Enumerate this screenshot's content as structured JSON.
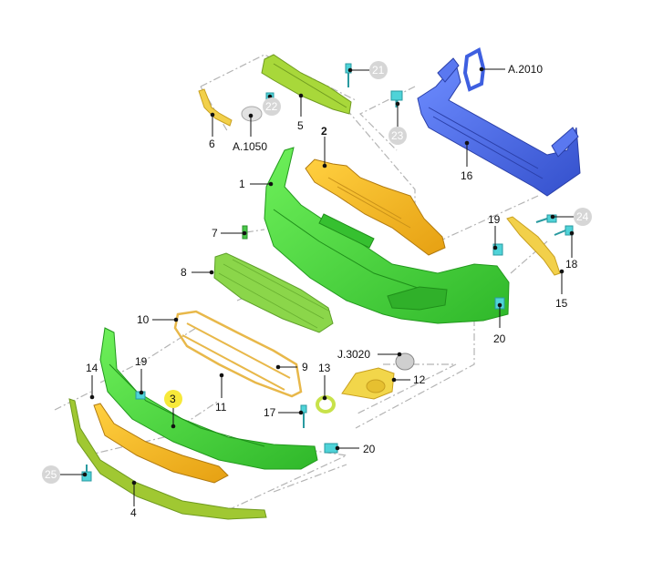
{
  "diagram": {
    "title": "",
    "callouts": {
      "p1": "1",
      "p2": "2",
      "p3": "3",
      "p4": "4",
      "p5": "5",
      "p6": "6",
      "p7": "7",
      "p8": "8",
      "p9": "9",
      "p10": "10",
      "p11": "11",
      "p12": "12",
      "p13": "13",
      "p14": "14",
      "p15": "15",
      "p16": "16",
      "p17": "17",
      "p18": "18",
      "p19a": "19",
      "p19b": "19",
      "p20a": "20",
      "p20b": "20",
      "p21": "21",
      "p22": "22",
      "p23": "23",
      "p24": "24",
      "p25": "25",
      "a2010": "A.2010",
      "a1050": "A.1050",
      "j3020": "J.3020"
    },
    "colors": {
      "bumper_green": "#46d83c",
      "grille_green": "#8fd44a",
      "bracket_yellow": "#f3b61a",
      "yellow_light": "#f2dd52",
      "beam_blue": "#4f6ee8",
      "clip_cyan": "#4fd3d8",
      "grey_circle": "#d6d6d6",
      "highlight_circle": "#f7e93a",
      "lip_olive": "#a0c832"
    }
  }
}
